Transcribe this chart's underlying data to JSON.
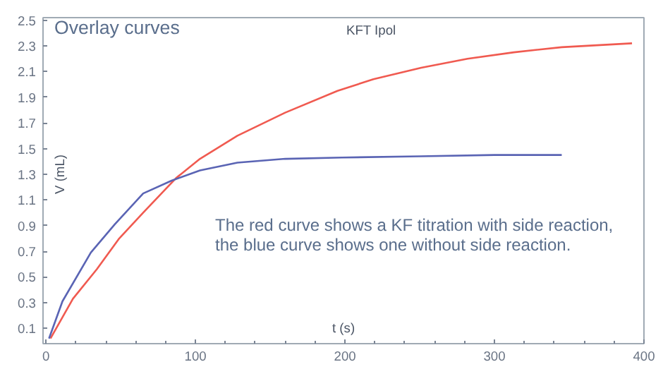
{
  "chart_data": {
    "type": "line",
    "title": "Overlay curves",
    "subtitle": "KFT Ipol",
    "xlabel": "t (s)",
    "ylabel": "V (mL)",
    "annotations": [
      "The red curve shows a KF titration with side reaction,",
      "the blue curve shows one without side reaction."
    ],
    "xlim": [
      -2,
      400
    ],
    "ylim": [
      -0.02,
      2.52
    ],
    "xticks": [
      0,
      100,
      200,
      300,
      400
    ],
    "yticks": [
      0.1,
      0.3,
      0.5,
      0.7,
      0.9,
      1.1,
      1.3,
      1.5,
      1.7,
      1.9,
      2.1,
      2.3,
      2.5
    ],
    "grid": false,
    "marker": "none",
    "line_style": "solid",
    "series": [
      {
        "color": "#f05a50",
        "x": [
          3,
          18,
          34,
          49,
          65,
          87,
          103,
          128,
          160,
          195,
          219,
          251,
          282,
          313,
          345,
          392
        ],
        "values": [
          0.02,
          0.33,
          0.56,
          0.8,
          1.0,
          1.27,
          1.42,
          1.6,
          1.78,
          1.95,
          2.04,
          2.13,
          2.2,
          2.25,
          2.29,
          2.32
        ]
      },
      {
        "color": "#5a64b4",
        "x": [
          2,
          11,
          30,
          46,
          65,
          84,
          103,
          128,
          160,
          198,
          250,
          300,
          345
        ],
        "values": [
          0.02,
          0.31,
          0.69,
          0.91,
          1.15,
          1.25,
          1.33,
          1.39,
          1.42,
          1.43,
          1.44,
          1.45,
          1.45
        ]
      }
    ]
  }
}
